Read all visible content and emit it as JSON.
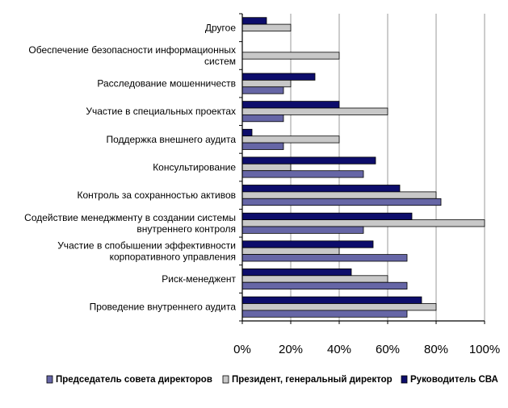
{
  "chart_data": {
    "type": "bar",
    "orientation": "horizontal",
    "categories": [
      [
        "Другое"
      ],
      [
        "Обеспечение безопасности информационных",
        "систем"
      ],
      [
        "Расследование мошенничеств"
      ],
      [
        "Участие в специальных проектах"
      ],
      [
        "Поддержка внешнего аудита"
      ],
      [
        "Консультирование"
      ],
      [
        "Контроль за сохранностью активов"
      ],
      [
        "Содействие менеджменту в создании системы",
        "внутреннего контроля"
      ],
      [
        "Участие в спобышении эффективности",
        "корпоративного управления"
      ],
      [
        "Риск-менеджент"
      ],
      [
        "Проведение внутреннего аудита"
      ]
    ],
    "series": [
      {
        "name": "Руководитель СВА",
        "color": "#0d0d6b",
        "values": [
          10,
          0,
          30,
          40,
          4,
          55,
          65,
          70,
          54,
          45,
          74
        ]
      },
      {
        "name": "Президент, генеральный директор",
        "color": "#c8c8c8",
        "values": [
          20,
          40,
          20,
          60,
          40,
          20,
          80,
          100,
          40,
          60,
          80
        ]
      },
      {
        "name": "Председатель совета директоров",
        "color": "#6666a6",
        "values": [
          0,
          0,
          17,
          17,
          17,
          50,
          82,
          50,
          68,
          68,
          68
        ]
      }
    ],
    "legend_order": [
      2,
      1,
      0
    ],
    "xlim": [
      0,
      100
    ],
    "x_ticks": [
      0,
      20,
      40,
      60,
      80,
      100
    ],
    "tick_suffix": "%",
    "grid": "vertical",
    "legend_position": "bottom"
  }
}
